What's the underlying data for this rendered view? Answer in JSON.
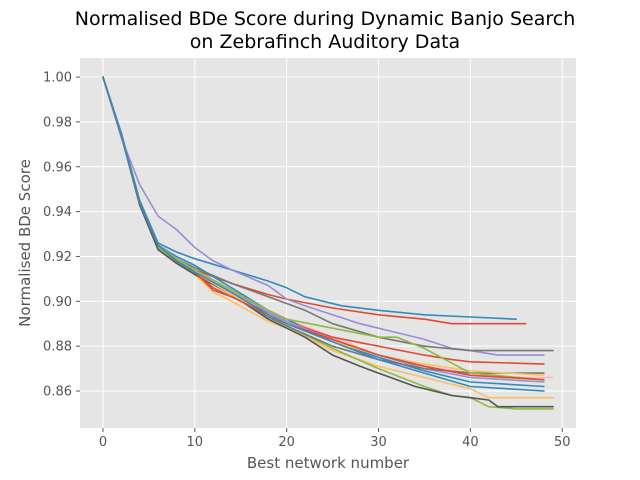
{
  "chart_data": {
    "type": "line",
    "title": "Normalised BDe Score during Dynamic Banjo Search\non Zebrafinch Auditory Data",
    "xlabel": "Best network number",
    "ylabel": "Normalised BDe Score",
    "xlim": [
      -2.5,
      51.5
    ],
    "ylim": [
      0.8435,
      1.0085
    ],
    "xticks": [
      0,
      10,
      20,
      30,
      40,
      50
    ],
    "yticks": [
      0.86,
      0.88,
      0.9,
      0.92,
      0.94,
      0.96,
      0.98,
      1.0
    ],
    "grid": true,
    "legend": "none",
    "style": {
      "background": "#e5e5e5",
      "grid": "#ffffff",
      "tick_color": "#555555"
    },
    "series": [
      {
        "color": "#348abd",
        "x": [
          0,
          2,
          4,
          6,
          8,
          10,
          14,
          18,
          20,
          22,
          26,
          30,
          35,
          40,
          45
        ],
        "y": [
          1.0,
          0.975,
          0.945,
          0.926,
          0.922,
          0.919,
          0.914,
          0.909,
          0.906,
          0.902,
          0.898,
          0.896,
          0.894,
          0.893,
          0.892
        ]
      },
      {
        "color": "#e24a33",
        "x": [
          0,
          2,
          4,
          6,
          8,
          10,
          14,
          18,
          20,
          25,
          30,
          35,
          38,
          40,
          46
        ],
        "y": [
          1.0,
          0.974,
          0.944,
          0.925,
          0.918,
          0.914,
          0.908,
          0.903,
          0.901,
          0.897,
          0.894,
          0.892,
          0.89,
          0.89,
          0.89
        ]
      },
      {
        "color": "#988ed5",
        "x": [
          0,
          2,
          4,
          6,
          8,
          10,
          12,
          14,
          18,
          20,
          22,
          25,
          28,
          30,
          33,
          35,
          38,
          40,
          43,
          48
        ],
        "y": [
          1.0,
          0.973,
          0.952,
          0.938,
          0.932,
          0.924,
          0.918,
          0.914,
          0.907,
          0.901,
          0.898,
          0.894,
          0.89,
          0.888,
          0.885,
          0.883,
          0.879,
          0.878,
          0.876,
          0.876
        ]
      },
      {
        "color": "#777777",
        "x": [
          0,
          2,
          4,
          6,
          8,
          10,
          14,
          18,
          20,
          22,
          25,
          30,
          35,
          40,
          49
        ],
        "y": [
          1.0,
          0.974,
          0.943,
          0.924,
          0.919,
          0.915,
          0.908,
          0.902,
          0.899,
          0.896,
          0.89,
          0.884,
          0.88,
          0.878,
          0.878
        ]
      },
      {
        "color": "#fbc15e",
        "x": [
          0,
          2,
          4,
          6,
          8,
          10,
          12,
          14,
          18,
          20,
          25,
          30,
          35,
          40,
          42,
          49
        ],
        "y": [
          1.0,
          0.974,
          0.943,
          0.924,
          0.917,
          0.912,
          0.904,
          0.9,
          0.891,
          0.888,
          0.878,
          0.871,
          0.866,
          0.861,
          0.857,
          0.857
        ]
      },
      {
        "color": "#8eba42",
        "x": [
          0,
          2,
          4,
          6,
          8,
          10,
          14,
          18,
          20,
          22,
          25,
          30,
          35,
          38,
          40,
          42,
          45,
          49
        ],
        "y": [
          1.0,
          0.974,
          0.943,
          0.924,
          0.917,
          0.912,
          0.904,
          0.894,
          0.889,
          0.885,
          0.879,
          0.87,
          0.862,
          0.858,
          0.857,
          0.853,
          0.852,
          0.852
        ]
      },
      {
        "color": "#ffb5b8",
        "x": [
          0,
          2,
          4,
          6,
          8,
          10,
          14,
          18,
          20,
          25,
          30,
          35,
          40,
          45,
          49
        ],
        "y": [
          1.0,
          0.974,
          0.944,
          0.925,
          0.919,
          0.914,
          0.904,
          0.895,
          0.892,
          0.884,
          0.876,
          0.871,
          0.868,
          0.866,
          0.866
        ]
      },
      {
        "color": "#555555",
        "x": [
          0,
          2,
          4,
          6,
          8,
          10,
          14,
          18,
          20,
          22,
          25,
          28,
          30,
          34,
          38,
          40,
          42,
          43,
          45,
          49
        ],
        "y": [
          1.0,
          0.974,
          0.943,
          0.923,
          0.917,
          0.912,
          0.903,
          0.892,
          0.888,
          0.884,
          0.876,
          0.871,
          0.868,
          0.862,
          0.858,
          0.857,
          0.856,
          0.853,
          0.853,
          0.853
        ]
      },
      {
        "color": "#348abd",
        "x": [
          0,
          2,
          4,
          6,
          8,
          10,
          14,
          18,
          20,
          25,
          30,
          35,
          40,
          48
        ],
        "y": [
          1.0,
          0.975,
          0.944,
          0.925,
          0.92,
          0.916,
          0.906,
          0.896,
          0.892,
          0.882,
          0.875,
          0.869,
          0.864,
          0.862
        ]
      },
      {
        "color": "#e24a33",
        "x": [
          0,
          2,
          4,
          6,
          8,
          10,
          12,
          14,
          18,
          20,
          25,
          30,
          35,
          38,
          40,
          48
        ],
        "y": [
          1.0,
          0.974,
          0.944,
          0.925,
          0.918,
          0.913,
          0.906,
          0.902,
          0.895,
          0.891,
          0.884,
          0.88,
          0.876,
          0.874,
          0.873,
          0.872
        ]
      },
      {
        "color": "#988ed5",
        "x": [
          0,
          2,
          4,
          6,
          8,
          10,
          14,
          18,
          20,
          25,
          30,
          35,
          40,
          48
        ],
        "y": [
          1.0,
          0.974,
          0.944,
          0.925,
          0.919,
          0.914,
          0.905,
          0.895,
          0.891,
          0.883,
          0.876,
          0.87,
          0.866,
          0.864
        ]
      },
      {
        "color": "#777777",
        "x": [
          0,
          2,
          4,
          6,
          8,
          10,
          14,
          18,
          20,
          25,
          30,
          35,
          40,
          48
        ],
        "y": [
          1.0,
          0.974,
          0.944,
          0.925,
          0.918,
          0.913,
          0.903,
          0.893,
          0.889,
          0.88,
          0.874,
          0.87,
          0.868,
          0.868
        ]
      },
      {
        "color": "#fbc15e",
        "x": [
          0,
          2,
          4,
          6,
          8,
          10,
          14,
          18,
          20,
          25,
          30,
          35,
          40,
          48
        ],
        "y": [
          1.0,
          0.974,
          0.944,
          0.925,
          0.918,
          0.913,
          0.903,
          0.894,
          0.89,
          0.882,
          0.876,
          0.872,
          0.869,
          0.867
        ]
      },
      {
        "color": "#8eba42",
        "x": [
          0,
          2,
          4,
          6,
          8,
          10,
          14,
          18,
          20,
          25,
          30,
          32,
          35,
          40,
          48
        ],
        "y": [
          1.0,
          0.974,
          0.944,
          0.925,
          0.919,
          0.914,
          0.905,
          0.896,
          0.892,
          0.888,
          0.884,
          0.884,
          0.879,
          0.868,
          0.865
        ]
      },
      {
        "color": "#e24a33",
        "x": [
          0,
          2,
          4,
          6,
          8,
          10,
          12,
          14,
          18,
          20,
          25,
          30,
          35,
          40,
          48
        ],
        "y": [
          1.0,
          0.974,
          0.944,
          0.925,
          0.918,
          0.913,
          0.905,
          0.902,
          0.894,
          0.89,
          0.883,
          0.876,
          0.871,
          0.867,
          0.865
        ]
      },
      {
        "color": "#348abd",
        "x": [
          0,
          2,
          4,
          6,
          8,
          10,
          14,
          18,
          20,
          25,
          30,
          35,
          40,
          48
        ],
        "y": [
          1.0,
          0.974,
          0.944,
          0.925,
          0.918,
          0.913,
          0.904,
          0.894,
          0.89,
          0.882,
          0.874,
          0.868,
          0.862,
          0.86
        ]
      }
    ]
  }
}
